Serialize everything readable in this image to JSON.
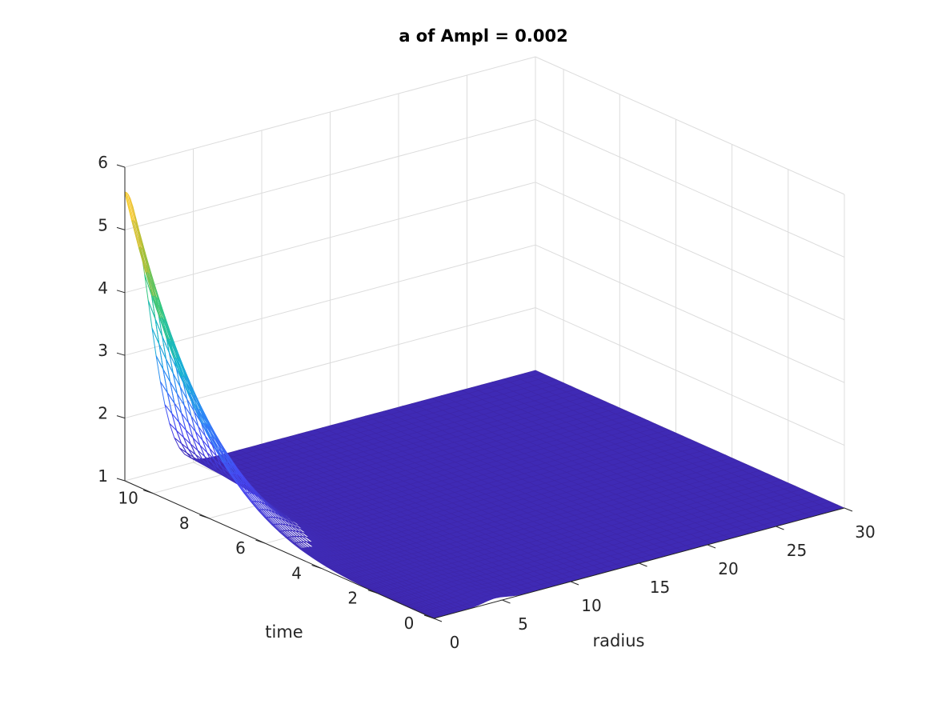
{
  "chart_data": {
    "type": "surface",
    "title": "a of Ampl = 0.002",
    "xlabel": "radius",
    "ylabel": "time",
    "zlabel": "",
    "xlim": [
      0,
      30
    ],
    "ylim": [
      0,
      11
    ],
    "zlim": [
      1,
      6
    ],
    "xticks": [
      "0",
      "5",
      "10",
      "15",
      "20",
      "25",
      "30"
    ],
    "yticks": [
      "0",
      "2",
      "4",
      "6",
      "8",
      "10"
    ],
    "zticks": [
      "1",
      "2",
      "3",
      "4",
      "5",
      "6"
    ],
    "grid": true,
    "colormap": [
      "#3e26a8",
      "#4748f4",
      "#2e87f7",
      "#16b4d0",
      "#32c87f",
      "#a7bf37",
      "#f5c53a",
      "#f9fb0e"
    ],
    "surface": {
      "peak_value": 5.6,
      "peak_radius": 0,
      "peak_time": 11,
      "baseline_value": 1
    }
  }
}
